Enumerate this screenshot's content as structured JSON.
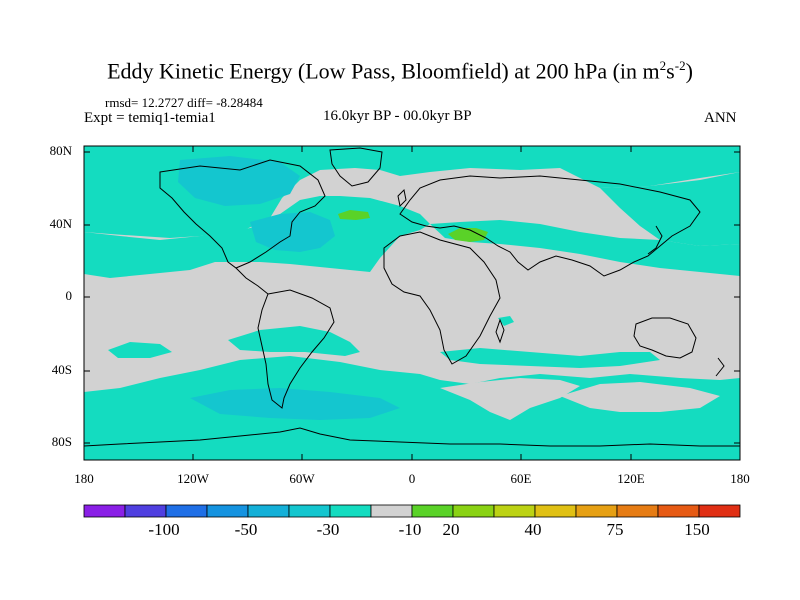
{
  "title": {
    "main": "Eddy Kinetic Energy (Low Pass, Bloomfield) at 200 hPa (in m",
    "sup1": "2",
    "mid": "s",
    "sup2": "-2",
    "end": ")"
  },
  "stats": {
    "rmsd_label": "rmsd=",
    "rmsd_value": "12.2727",
    "diff_label": "diff=",
    "diff_value": "-8.28484"
  },
  "experiment": "Expt = temiq1-temia1",
  "period": "16.0kyr BP - 00.0kyr BP",
  "season": "ANN",
  "axes": {
    "lat_ticks": [
      "80N",
      "40N",
      "0",
      "40S",
      "80S"
    ],
    "lon_ticks": [
      "180",
      "120W",
      "60W",
      "0",
      "60E",
      "120E",
      "180"
    ]
  },
  "colorbar": {
    "labels": [
      "-100",
      "-50",
      "-30",
      "-10",
      "20",
      "40",
      "75",
      "150"
    ],
    "colors": [
      "#8a1fe6",
      "#4f3fe0",
      "#1f6fe6",
      "#1593e0",
      "#14b0d8",
      "#14c6cf",
      "#14dcc0",
      "#d2d2d2",
      "#5ad228",
      "#8ad214",
      "#bcd214",
      "#e0c014",
      "#e6a014",
      "#e67c14",
      "#e65a14",
      "#e02f14"
    ]
  },
  "map": {
    "background_color": "#d2d2d2",
    "negative_color": "#14dcc0",
    "strong_negative_color": "#14c6cf",
    "positive_color": "#5ad228"
  }
}
